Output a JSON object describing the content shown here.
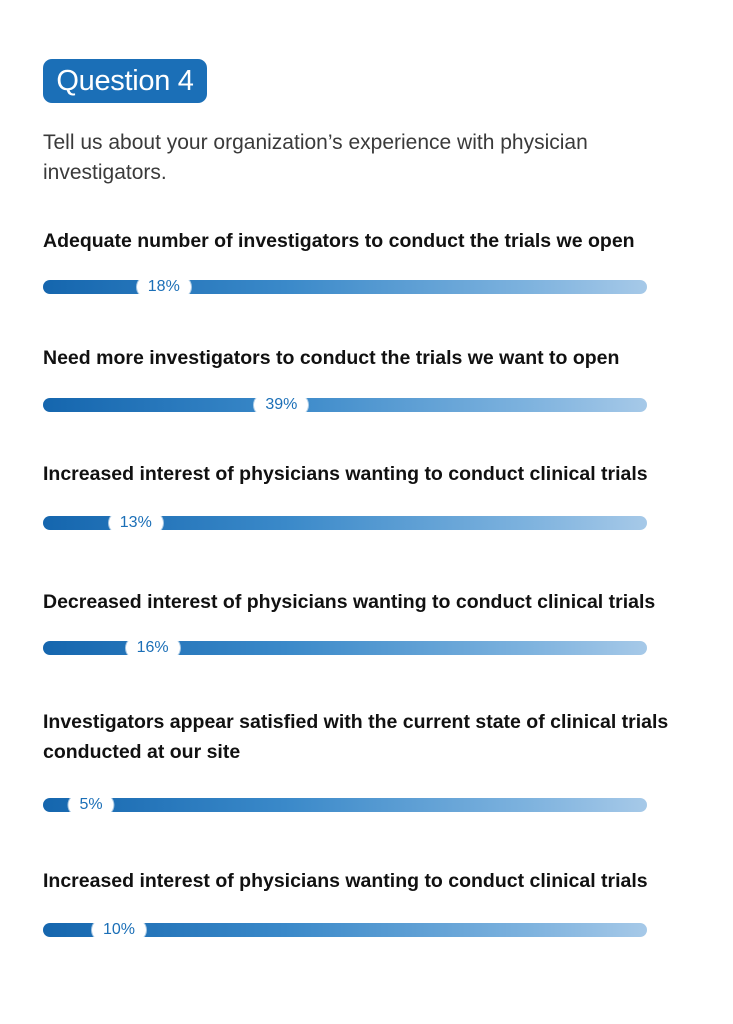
{
  "question_badge": "Question 4",
  "intro": "Tell us about your organization’s experience with physician investigators.",
  "colors": {
    "accent": "#1b6fb7",
    "bar_start": "#1566ae",
    "bar_end": "#a6c9e8"
  },
  "chart_data": {
    "type": "bar",
    "orientation": "horizontal",
    "unit": "%",
    "xlim": [
      0,
      100
    ],
    "categories": [
      "Adequate number of investigators to conduct the trials we open",
      "Need more investigators to conduct the trials we want to open",
      "Increased interest of physicians wanting to conduct clinical trials",
      "Decreased interest of physicians wanting to conduct clinical trials",
      "Investigators appear satisfied with the current state of clinical trials conducted at our site",
      "Increased interest of physicians wanting to conduct clinical trials"
    ],
    "values": [
      18,
      39,
      13,
      16,
      5,
      10
    ],
    "value_labels": [
      "18%",
      "39%",
      "13%",
      "16%",
      "5%",
      "10%"
    ]
  }
}
